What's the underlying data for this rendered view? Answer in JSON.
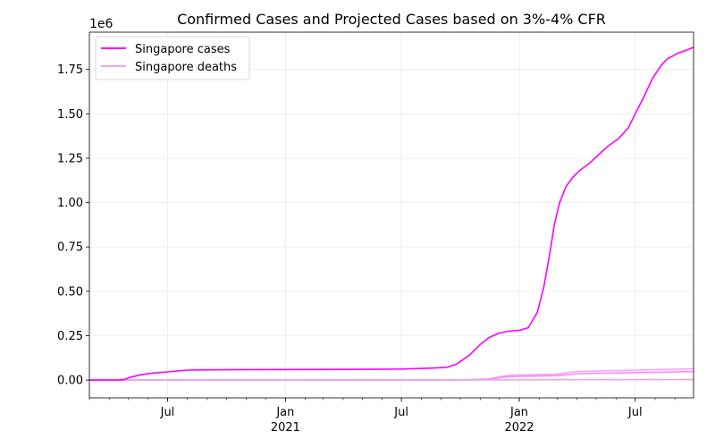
{
  "chart_data": {
    "type": "line",
    "title": "Confirmed Cases and Projected Cases based on 3%-4% CFR",
    "xlabel": "",
    "ylabel": "",
    "y_multiplier_label": "1e6",
    "xlim": [
      "2020-03-01",
      "2022-09-30"
    ],
    "ylim": [
      -0.1,
      1.96
    ],
    "y_ticks": [
      "0.00",
      "0.25",
      "0.50",
      "0.75",
      "1.00",
      "1.25",
      "1.50",
      "1.75"
    ],
    "x_ticks": [
      {
        "date": "2020-07-01",
        "label": "Jul",
        "sublabel": ""
      },
      {
        "date": "2021-01-01",
        "label": "Jan",
        "sublabel": "2021"
      },
      {
        "date": "2021-07-01",
        "label": "Jul",
        "sublabel": ""
      },
      {
        "date": "2022-01-01",
        "label": "Jan",
        "sublabel": "2022"
      },
      {
        "date": "2022-07-01",
        "label": "Jul",
        "sublabel": ""
      }
    ],
    "grid": true,
    "legend_position": "top-left",
    "series": [
      {
        "name": "Singapore cases",
        "color": "#ff00ff",
        "x": [
          "2020-03-01",
          "2020-04-15",
          "2020-04-25",
          "2020-05-05",
          "2020-05-20",
          "2020-06-10",
          "2020-07-01",
          "2020-08-01",
          "2020-08-15",
          "2020-10-01",
          "2021-01-01",
          "2021-04-01",
          "2021-07-01",
          "2021-08-15",
          "2021-09-10",
          "2021-09-25",
          "2021-10-15",
          "2021-11-01",
          "2021-11-15",
          "2021-12-01",
          "2021-12-15",
          "2022-01-01",
          "2022-01-15",
          "2022-01-29",
          "2022-02-08",
          "2022-02-18",
          "2022-02-25",
          "2022-03-05",
          "2022-03-15",
          "2022-03-25",
          "2022-04-05",
          "2022-04-20",
          "2022-05-05",
          "2022-05-20",
          "2022-06-05",
          "2022-06-20",
          "2022-07-01",
          "2022-07-15",
          "2022-07-28",
          "2022-08-10",
          "2022-08-20",
          "2022-09-05",
          "2022-09-20",
          "2022-09-30"
        ],
        "values": [
          0.0,
          0.0,
          0.004,
          0.017,
          0.03,
          0.04,
          0.046,
          0.056,
          0.057,
          0.058,
          0.059,
          0.06,
          0.062,
          0.067,
          0.072,
          0.09,
          0.14,
          0.2,
          0.24,
          0.265,
          0.275,
          0.28,
          0.295,
          0.38,
          0.52,
          0.72,
          0.88,
          1.0,
          1.09,
          1.14,
          1.18,
          1.22,
          1.27,
          1.32,
          1.36,
          1.42,
          1.5,
          1.6,
          1.7,
          1.77,
          1.81,
          1.84,
          1.86,
          1.875
        ]
      },
      {
        "name": "Singapore deaths",
        "color": "#e8a8e8",
        "x": [
          "2020-03-01",
          "2021-09-01",
          "2021-12-01",
          "2022-03-01",
          "2022-09-30"
        ],
        "values": [
          0.0,
          0.0,
          0.001,
          0.002,
          0.003
        ]
      },
      {
        "name": "",
        "color": "#ff88ff",
        "x": [
          "2020-03-01",
          "2021-10-01",
          "2021-11-15",
          "2021-12-15",
          "2022-03-01",
          "2022-04-01",
          "2022-06-01",
          "2022-08-01",
          "2022-09-30"
        ],
        "values": [
          0.0,
          0.0,
          0.005,
          0.02,
          0.025,
          0.036,
          0.04,
          0.044,
          0.048
        ]
      },
      {
        "name": "",
        "color": "#ffa0ff",
        "x": [
          "2020-03-01",
          "2021-10-01",
          "2021-11-15",
          "2021-12-15",
          "2022-03-01",
          "2022-04-01",
          "2022-06-01",
          "2022-08-01",
          "2022-09-30"
        ],
        "values": [
          0.0,
          0.0,
          0.007,
          0.027,
          0.034,
          0.048,
          0.053,
          0.058,
          0.064
        ]
      }
    ]
  }
}
